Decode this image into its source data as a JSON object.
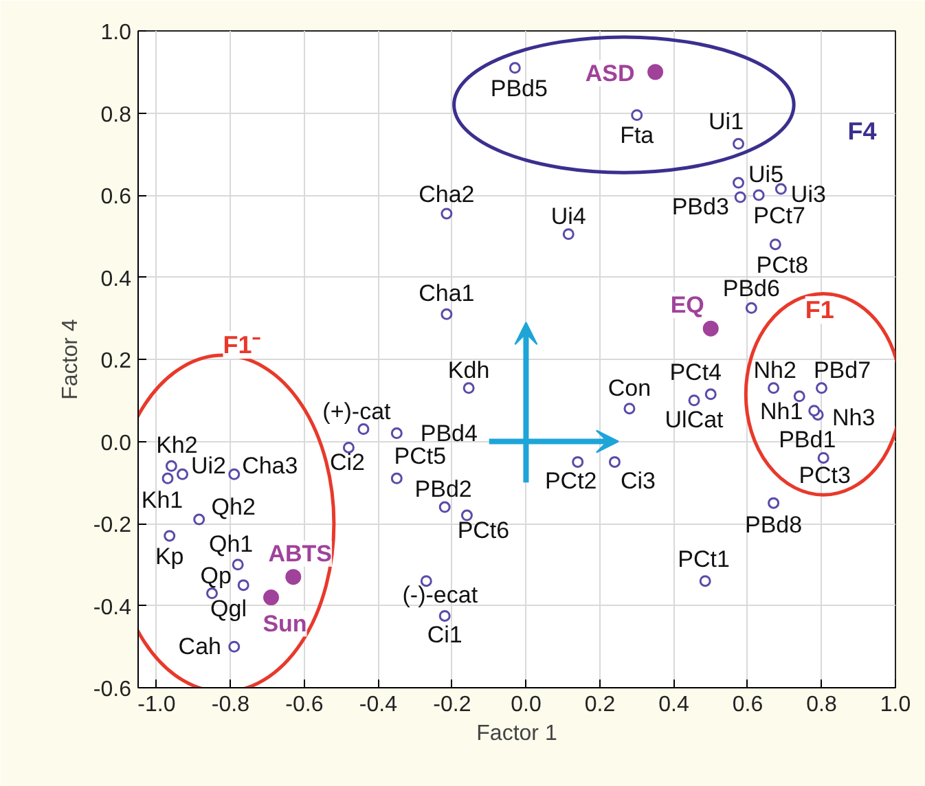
{
  "chart_data": {
    "type": "scatter",
    "xlabel": "Factor 1",
    "ylabel": "Factor 4",
    "xlim": [
      -1.05,
      1.0
    ],
    "ylim": [
      -0.6,
      1.0
    ],
    "xticks": [
      {
        "value": -1.0,
        "label": "-1.0"
      },
      {
        "value": -0.8,
        "label": "-0.8"
      },
      {
        "value": -0.6,
        "label": "-0.6"
      },
      {
        "value": -0.4,
        "label": "-0.4"
      },
      {
        "value": -0.2,
        "label": "-0.2"
      },
      {
        "value": 0.0,
        "label": "0.0"
      },
      {
        "value": 0.2,
        "label": "0.2"
      },
      {
        "value": 0.4,
        "label": "0.4"
      },
      {
        "value": 0.6,
        "label": "0.6"
      },
      {
        "value": 0.8,
        "label": "0.8"
      },
      {
        "value": 1.0,
        "label": "1.0"
      }
    ],
    "yticks": [
      {
        "value": -0.6,
        "label": "-0.6"
      },
      {
        "value": -0.4,
        "label": "-0.4"
      },
      {
        "value": -0.2,
        "label": "-0.2"
      },
      {
        "value": 0.0,
        "label": "0.0"
      },
      {
        "value": 0.2,
        "label": "0.2"
      },
      {
        "value": 0.4,
        "label": "0.4"
      },
      {
        "value": 0.6,
        "label": "0.6"
      },
      {
        "value": 0.8,
        "label": "0.8"
      },
      {
        "value": 1.0,
        "label": "1.0"
      }
    ],
    "grid": true,
    "marker": "circle",
    "series": [
      {
        "color": "#5b4aa8",
        "x": [
          -0.215,
          -0.155,
          -0.44,
          -0.35,
          -0.48,
          -0.35,
          -0.22,
          -0.16,
          -0.96,
          -0.93,
          -0.97,
          -0.79,
          -0.885,
          -0.965,
          -0.78,
          -0.765,
          -0.85,
          -0.79,
          -0.27,
          -0.22,
          0.61,
          0.28,
          0.5,
          0.455,
          0.67,
          0.74,
          0.8,
          0.79,
          0.78,
          0.805,
          0.14,
          0.24,
          0.67,
          0.485,
          -0.03,
          0.3,
          0.575,
          0.575,
          0.58,
          0.63,
          0.69,
          0.675,
          -0.215,
          0.115
        ],
        "values": [
          0.31,
          0.13,
          0.03,
          0.02,
          -0.015,
          -0.09,
          -0.16,
          -0.18,
          -0.06,
          -0.08,
          -0.09,
          -0.08,
          -0.19,
          -0.23,
          -0.3,
          -0.35,
          -0.37,
          -0.5,
          -0.34,
          -0.425,
          0.325,
          0.08,
          0.115,
          0.1,
          0.13,
          0.11,
          0.13,
          0.065,
          0.075,
          -0.04,
          -0.05,
          -0.05,
          -0.15,
          -0.34,
          0.91,
          0.795,
          0.725,
          0.63,
          0.595,
          0.6,
          0.615,
          0.48,
          0.555,
          0.505
        ]
      },
      {
        "color": "#a0429a",
        "x": [
          -0.63,
          -0.69,
          0.35,
          0.5
        ],
        "values": [
          -0.33,
          -0.38,
          0.9,
          0.275
        ]
      }
    ],
    "annotations": [
      {
        "text": "Cha1",
        "x": -0.215,
        "y": 0.31
      },
      {
        "text": "Kdh",
        "x": -0.155,
        "y": 0.13
      },
      {
        "text": "(+)-cat",
        "x": -0.44,
        "y": 0.03
      },
      {
        "text": "PBd4",
        "x": -0.35,
        "y": 0.02
      },
      {
        "text": "Ci2",
        "x": -0.48,
        "y": -0.015
      },
      {
        "text": "PCt5",
        "x": -0.35,
        "y": -0.09
      },
      {
        "text": "PBd2",
        "x": -0.22,
        "y": -0.16
      },
      {
        "text": "PCt6",
        "x": -0.16,
        "y": -0.18
      },
      {
        "text": "Kh2",
        "x": -0.96,
        "y": -0.06
      },
      {
        "text": "Ui2",
        "x": -0.93,
        "y": -0.08
      },
      {
        "text": "Kh1",
        "x": -0.97,
        "y": -0.09
      },
      {
        "text": "Cha3",
        "x": -0.79,
        "y": -0.08
      },
      {
        "text": "Qh2",
        "x": -0.885,
        "y": -0.19
      },
      {
        "text": "Kp",
        "x": -0.965,
        "y": -0.23
      },
      {
        "text": "Qh1",
        "x": -0.78,
        "y": -0.3
      },
      {
        "text": "Qp",
        "x": -0.765,
        "y": -0.35
      },
      {
        "text": "Qgl",
        "x": -0.85,
        "y": -0.37
      },
      {
        "text": "Cah",
        "x": -0.79,
        "y": -0.5
      },
      {
        "text": "(-)-ecat",
        "x": -0.27,
        "y": -0.34
      },
      {
        "text": "Ci1",
        "x": -0.22,
        "y": -0.425
      },
      {
        "text": "PBd6",
        "x": 0.61,
        "y": 0.325
      },
      {
        "text": "Con",
        "x": 0.28,
        "y": 0.08
      },
      {
        "text": "PCt4",
        "x": 0.5,
        "y": 0.115
      },
      {
        "text": "UlCat",
        "x": 0.455,
        "y": 0.1
      },
      {
        "text": "Nh2",
        "x": 0.67,
        "y": 0.13
      },
      {
        "text": "Nh1",
        "x": 0.74,
        "y": 0.11
      },
      {
        "text": "PBd7",
        "x": 0.8,
        "y": 0.13
      },
      {
        "text": "Nh3",
        "x": 0.79,
        "y": 0.065
      },
      {
        "text": "PBd1",
        "x": 0.78,
        "y": 0.075
      },
      {
        "text": "PCt3",
        "x": 0.805,
        "y": -0.04
      },
      {
        "text": "PCt2",
        "x": 0.14,
        "y": -0.05
      },
      {
        "text": "Ci3",
        "x": 0.24,
        "y": -0.05
      },
      {
        "text": "PBd8",
        "x": 0.67,
        "y": -0.15
      },
      {
        "text": "PCt1",
        "x": 0.485,
        "y": -0.34
      },
      {
        "text": "PBd5",
        "x": -0.03,
        "y": 0.91
      },
      {
        "text": "Fta",
        "x": 0.3,
        "y": 0.795
      },
      {
        "text": "Ui1",
        "x": 0.575,
        "y": 0.725
      },
      {
        "text": "Ui5",
        "x": 0.575,
        "y": 0.63
      },
      {
        "text": "PBd3",
        "x": 0.58,
        "y": 0.595
      },
      {
        "text": "PCt7",
        "x": 0.63,
        "y": 0.6
      },
      {
        "text": "Ui3",
        "x": 0.69,
        "y": 0.615
      },
      {
        "text": "PCt8",
        "x": 0.675,
        "y": 0.48
      },
      {
        "text": "Cha2",
        "x": -0.215,
        "y": 0.555
      },
      {
        "text": "Ui4",
        "x": 0.115,
        "y": 0.505
      },
      {
        "text": "ABTS",
        "x": -0.63,
        "y": -0.33
      },
      {
        "text": "Sun",
        "x": -0.69,
        "y": -0.38
      },
      {
        "text": "ASD",
        "x": 0.35,
        "y": 0.9
      },
      {
        "text": "EQ",
        "x": 0.5,
        "y": 0.275
      },
      "F1⁻",
      "F1",
      "F4"
    ]
  }
}
